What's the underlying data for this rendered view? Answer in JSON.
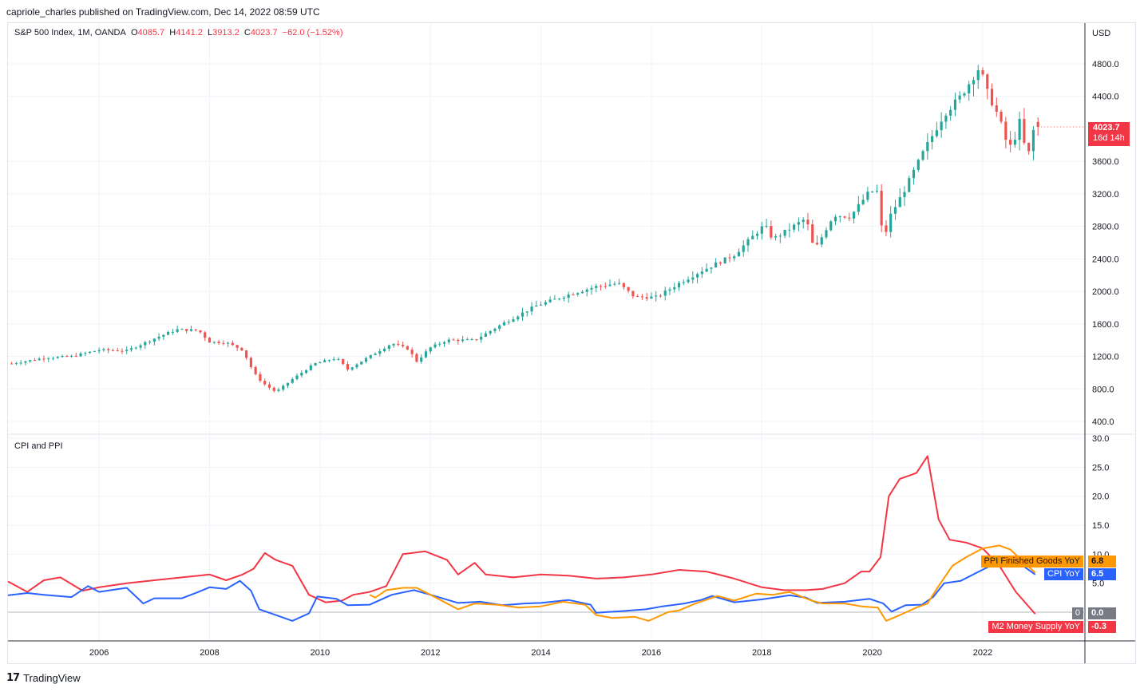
{
  "publisher_line": "capriole_charles published on TradingView.com, Dec 14, 2022 08:59 UTC",
  "brand": {
    "logo": "17",
    "name": "TradingView"
  },
  "main_legend": {
    "symbol": "S&P 500 Index, 1M, OANDA",
    "o_label": "O",
    "o_value": "4085.7",
    "h_label": "H",
    "h_value": "4141.2",
    "l_label": "L",
    "l_value": "3913.2",
    "c_label": "C",
    "c_value": "4023.7",
    "change": "−62.0 (−1.52%)"
  },
  "indicator_title": "CPI and PPI",
  "colors": {
    "up": "#26a69a",
    "down": "#ef5350",
    "cpi": "#2962ff",
    "ppi": "#ff9800",
    "m2": "#f23645",
    "grid": "#f0f3fa",
    "axis_text": "#131722"
  },
  "price_tag": {
    "value": "4023.7",
    "countdown": "16d 14h"
  },
  "indicator_tags": {
    "ppi_name": "PPI Finished Goods YoY",
    "ppi_value": "6.8",
    "cpi_name": "CPI YoY",
    "cpi_value": "6.5",
    "zero_name": "0",
    "zero_value": "0.0",
    "m2_name": "M2 Money Supply YoY",
    "m2_value": "-0.3"
  },
  "chart_data": [
    {
      "type": "candlestick",
      "title": "S&P 500 Index, 1M, OANDA",
      "unit": "USD",
      "y_ticks": [
        "400.0",
        "800.0",
        "1200.0",
        "1600.0",
        "2000.0",
        "2400.0",
        "2800.0",
        "3200.0",
        "3600.0",
        "4400.0",
        "4800.0"
      ],
      "ylim": [
        250,
        5000
      ],
      "x_ticks": [
        "2006",
        "2008",
        "2010",
        "2012",
        "2014",
        "2016",
        "2018",
        "2020",
        "2022"
      ],
      "x_range": [
        2004.35,
        2023.85
      ],
      "close_anchors": [
        [
          2004.4,
          1110
        ],
        [
          2005.0,
          1180
        ],
        [
          2005.5,
          1200
        ],
        [
          2006.0,
          1280
        ],
        [
          2006.5,
          1270
        ],
        [
          2007.0,
          1420
        ],
        [
          2007.4,
          1530
        ],
        [
          2007.8,
          1520
        ],
        [
          2008.0,
          1380
        ],
        [
          2008.3,
          1370
        ],
        [
          2008.6,
          1280
        ],
        [
          2008.8,
          1000
        ],
        [
          2008.95,
          880
        ],
        [
          2009.2,
          760
        ],
        [
          2009.5,
          920
        ],
        [
          2009.9,
          1110
        ],
        [
          2010.3,
          1180
        ],
        [
          2010.5,
          1040
        ],
        [
          2010.9,
          1200
        ],
        [
          2011.3,
          1360
        ],
        [
          2011.6,
          1290
        ],
        [
          2011.75,
          1140
        ],
        [
          2012.0,
          1310
        ],
        [
          2012.3,
          1400
        ],
        [
          2012.8,
          1400
        ],
        [
          2013.3,
          1600
        ],
        [
          2013.9,
          1820
        ],
        [
          2014.5,
          1960
        ],
        [
          2015.0,
          2060
        ],
        [
          2015.4,
          2100
        ],
        [
          2015.7,
          1930
        ],
        [
          2016.1,
          1930
        ],
        [
          2016.5,
          2100
        ],
        [
          2016.9,
          2250
        ],
        [
          2017.5,
          2450
        ],
        [
          2018.05,
          2820
        ],
        [
          2018.2,
          2640
        ],
        [
          2018.8,
          2900
        ],
        [
          2018.95,
          2500
        ],
        [
          2019.3,
          2940
        ],
        [
          2019.6,
          2920
        ],
        [
          2019.95,
          3230
        ],
        [
          2020.1,
          3230
        ],
        [
          2020.2,
          2580
        ],
        [
          2020.3,
          2900
        ],
        [
          2020.6,
          3270
        ],
        [
          2020.95,
          3750
        ],
        [
          2021.3,
          4180
        ],
        [
          2021.6,
          4400
        ],
        [
          2021.95,
          4770
        ],
        [
          2022.05,
          4500
        ],
        [
          2022.3,
          4130
        ],
        [
          2022.45,
          3790
        ],
        [
          2022.55,
          3780
        ],
        [
          2022.65,
          4130
        ],
        [
          2022.72,
          3950
        ],
        [
          2022.8,
          3590
        ],
        [
          2022.88,
          3870
        ],
        [
          2022.95,
          4080
        ],
        [
          2023.0,
          4024
        ]
      ]
    },
    {
      "type": "line",
      "title": "CPI and PPI",
      "y_ticks": [
        "0.0",
        "5.0",
        "10.0",
        "15.0",
        "20.0",
        "25.0",
        "30.0"
      ],
      "ylim": [
        -5,
        30
      ],
      "series": [
        {
          "name": "M2 Money Supply YoY",
          "color": "#f23645",
          "points": [
            [
              2004.35,
              5.3
            ],
            [
              2004.7,
              3.5
            ],
            [
              2005.0,
              5.5
            ],
            [
              2005.3,
              6.0
            ],
            [
              2005.7,
              3.7
            ],
            [
              2006.0,
              4.3
            ],
            [
              2006.5,
              5.0
            ],
            [
              2007.0,
              5.5
            ],
            [
              2007.5,
              6.0
            ],
            [
              2008.0,
              6.5
            ],
            [
              2008.3,
              5.5
            ],
            [
              2008.6,
              6.5
            ],
            [
              2008.8,
              7.5
            ],
            [
              2009.0,
              10.2
            ],
            [
              2009.2,
              9.0
            ],
            [
              2009.5,
              8.0
            ],
            [
              2009.8,
              3.0
            ],
            [
              2010.1,
              1.7
            ],
            [
              2010.4,
              2.0
            ],
            [
              2010.6,
              3.0
            ],
            [
              2010.9,
              3.5
            ],
            [
              2011.2,
              4.5
            ],
            [
              2011.5,
              10.0
            ],
            [
              2011.9,
              10.5
            ],
            [
              2012.3,
              9.0
            ],
            [
              2012.5,
              6.5
            ],
            [
              2012.8,
              8.5
            ],
            [
              2013.0,
              6.5
            ],
            [
              2013.5,
              6.0
            ],
            [
              2014.0,
              6.5
            ],
            [
              2014.5,
              6.3
            ],
            [
              2015.0,
              5.8
            ],
            [
              2015.5,
              6.0
            ],
            [
              2016.0,
              6.5
            ],
            [
              2016.5,
              7.3
            ],
            [
              2017.0,
              7.0
            ],
            [
              2017.5,
              5.8
            ],
            [
              2018.0,
              4.3
            ],
            [
              2018.4,
              3.8
            ],
            [
              2018.8,
              3.8
            ],
            [
              2019.1,
              4.0
            ],
            [
              2019.5,
              5.0
            ],
            [
              2019.8,
              7.0
            ],
            [
              2019.95,
              7.0
            ],
            [
              2020.15,
              9.5
            ],
            [
              2020.3,
              20.0
            ],
            [
              2020.5,
              23.0
            ],
            [
              2020.8,
              24.0
            ],
            [
              2021.0,
              26.9
            ],
            [
              2021.2,
              16.0
            ],
            [
              2021.4,
              12.5
            ],
            [
              2021.7,
              12.0
            ],
            [
              2022.0,
              11.0
            ],
            [
              2022.3,
              8.0
            ],
            [
              2022.6,
              3.5
            ],
            [
              2022.95,
              -0.3
            ]
          ]
        },
        {
          "name": "CPI YoY",
          "color": "#2962ff",
          "points": [
            [
              2004.35,
              2.9
            ],
            [
              2004.7,
              3.3
            ],
            [
              2005.0,
              3.0
            ],
            [
              2005.5,
              2.6
            ],
            [
              2005.8,
              4.5
            ],
            [
              2006.0,
              3.5
            ],
            [
              2006.5,
              4.2
            ],
            [
              2006.8,
              1.5
            ],
            [
              2007.0,
              2.4
            ],
            [
              2007.5,
              2.4
            ],
            [
              2007.8,
              3.5
            ],
            [
              2008.0,
              4.3
            ],
            [
              2008.3,
              4.0
            ],
            [
              2008.55,
              5.4
            ],
            [
              2008.75,
              3.7
            ],
            [
              2008.9,
              0.5
            ],
            [
              2009.2,
              -0.5
            ],
            [
              2009.5,
              -1.5
            ],
            [
              2009.8,
              -0.2
            ],
            [
              2009.95,
              2.7
            ],
            [
              2010.3,
              2.3
            ],
            [
              2010.5,
              1.2
            ],
            [
              2010.9,
              1.3
            ],
            [
              2011.3,
              3.0
            ],
            [
              2011.7,
              3.8
            ],
            [
              2012.0,
              3.0
            ],
            [
              2012.5,
              1.6
            ],
            [
              2012.9,
              1.8
            ],
            [
              2013.3,
              1.2
            ],
            [
              2013.7,
              1.5
            ],
            [
              2014.0,
              1.6
            ],
            [
              2014.5,
              2.1
            ],
            [
              2014.9,
              1.3
            ],
            [
              2015.0,
              -0.1
            ],
            [
              2015.5,
              0.2
            ],
            [
              2015.9,
              0.5
            ],
            [
              2016.2,
              1.0
            ],
            [
              2016.6,
              1.5
            ],
            [
              2016.9,
              2.1
            ],
            [
              2017.1,
              2.8
            ],
            [
              2017.5,
              1.7
            ],
            [
              2018.0,
              2.2
            ],
            [
              2018.5,
              2.9
            ],
            [
              2018.8,
              2.5
            ],
            [
              2019.0,
              1.6
            ],
            [
              2019.5,
              1.8
            ],
            [
              2019.95,
              2.3
            ],
            [
              2020.2,
              1.5
            ],
            [
              2020.35,
              0.1
            ],
            [
              2020.6,
              1.2
            ],
            [
              2020.9,
              1.3
            ],
            [
              2021.1,
              2.6
            ],
            [
              2021.3,
              5.0
            ],
            [
              2021.6,
              5.4
            ],
            [
              2021.95,
              7.1
            ],
            [
              2022.25,
              8.5
            ],
            [
              2022.5,
              9.0
            ],
            [
              2022.7,
              8.2
            ],
            [
              2022.95,
              6.5
            ]
          ]
        },
        {
          "name": "PPI Finished Goods YoY",
          "color": "#ff9800",
          "points": [
            [
              2010.9,
              3.0
            ],
            [
              2011.0,
              2.5
            ],
            [
              2011.2,
              3.8
            ],
            [
              2011.5,
              4.2
            ],
            [
              2011.75,
              4.2
            ],
            [
              2012.0,
              3.0
            ],
            [
              2012.5,
              0.5
            ],
            [
              2012.8,
              1.5
            ],
            [
              2013.2,
              1.3
            ],
            [
              2013.6,
              0.8
            ],
            [
              2014.0,
              1.0
            ],
            [
              2014.4,
              1.8
            ],
            [
              2014.8,
              1.3
            ],
            [
              2015.0,
              -0.5
            ],
            [
              2015.3,
              -1.0
            ],
            [
              2015.7,
              -0.8
            ],
            [
              2015.95,
              -1.5
            ],
            [
              2016.3,
              0.0
            ],
            [
              2016.5,
              0.3
            ],
            [
              2016.8,
              1.5
            ],
            [
              2017.2,
              2.8
            ],
            [
              2017.5,
              2.0
            ],
            [
              2017.9,
              3.2
            ],
            [
              2018.2,
              3.0
            ],
            [
              2018.5,
              3.5
            ],
            [
              2018.9,
              2.0
            ],
            [
              2019.1,
              1.5
            ],
            [
              2019.5,
              1.5
            ],
            [
              2019.8,
              1.0
            ],
            [
              2020.1,
              0.8
            ],
            [
              2020.25,
              -1.5
            ],
            [
              2020.5,
              -0.5
            ],
            [
              2020.8,
              0.8
            ],
            [
              2021.0,
              1.5
            ],
            [
              2021.2,
              4.5
            ],
            [
              2021.45,
              8.0
            ],
            [
              2021.7,
              9.5
            ],
            [
              2022.0,
              11.0
            ],
            [
              2022.3,
              11.5
            ],
            [
              2022.5,
              10.8
            ],
            [
              2022.7,
              9.0
            ],
            [
              2022.95,
              6.8
            ]
          ]
        }
      ]
    }
  ]
}
